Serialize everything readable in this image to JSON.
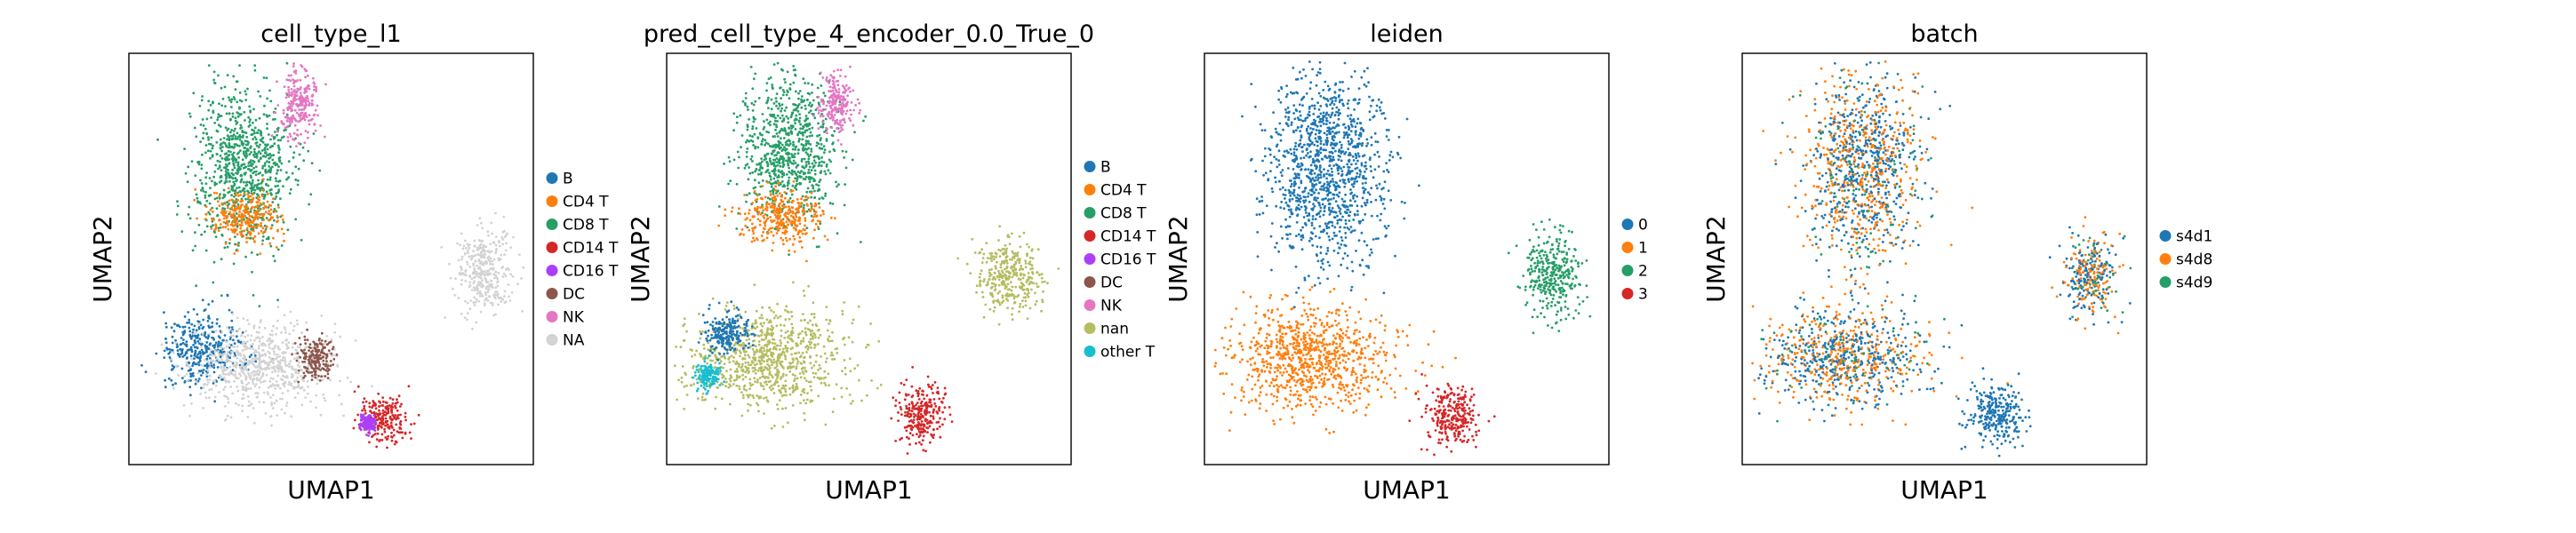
{
  "chart_data": [
    {
      "type": "scatter",
      "title": "cell_type_l1",
      "xlabel": "UMAP1",
      "ylabel": "UMAP2",
      "grid": false,
      "legend_position": "right",
      "legend": [
        {
          "label": "B",
          "color": "#1f77b4"
        },
        {
          "label": "CD4 T",
          "color": "#ff7f0e"
        },
        {
          "label": "CD8 T",
          "color": "#279e68"
        },
        {
          "label": "CD14 T",
          "color": "#d62728"
        },
        {
          "label": "CD16 T",
          "color": "#aa40fc"
        },
        {
          "label": "DC",
          "color": "#8c564b"
        },
        {
          "label": "NK",
          "color": "#e377c2"
        },
        {
          "label": "NA",
          "color": "#d3d3d3"
        }
      ],
      "regions": [
        {
          "label": "CD8 T",
          "x": 0.28,
          "y": 0.72,
          "rx": 0.12,
          "ry": 0.2
        },
        {
          "label": "CD4 T",
          "x": 0.29,
          "y": 0.6,
          "rx": 0.09,
          "ry": 0.06
        },
        {
          "label": "NK",
          "x": 0.42,
          "y": 0.88,
          "rx": 0.05,
          "ry": 0.08
        },
        {
          "label": "B",
          "x": 0.18,
          "y": 0.28,
          "rx": 0.1,
          "ry": 0.08
        },
        {
          "label": "NA",
          "x": 0.33,
          "y": 0.24,
          "rx": 0.18,
          "ry": 0.1
        },
        {
          "label": "NA",
          "x": 0.88,
          "y": 0.47,
          "rx": 0.07,
          "ry": 0.1
        },
        {
          "label": "DC",
          "x": 0.46,
          "y": 0.26,
          "rx": 0.04,
          "ry": 0.05
        },
        {
          "label": "CD14 T",
          "x": 0.63,
          "y": 0.11,
          "rx": 0.06,
          "ry": 0.06
        },
        {
          "label": "CD16 T",
          "x": 0.59,
          "y": 0.1,
          "rx": 0.02,
          "ry": 0.02
        }
      ]
    },
    {
      "type": "scatter",
      "title": "pred_cell_type_4_encoder_0.0_True_0",
      "xlabel": "UMAP1",
      "ylabel": "UMAP2",
      "grid": false,
      "legend_position": "right",
      "legend": [
        {
          "label": "B",
          "color": "#1f77b4"
        },
        {
          "label": "CD4 T",
          "color": "#ff7f0e"
        },
        {
          "label": "CD8 T",
          "color": "#279e68"
        },
        {
          "label": "CD14 T",
          "color": "#d62728"
        },
        {
          "label": "CD16 T",
          "color": "#aa40fc"
        },
        {
          "label": "DC",
          "color": "#8c564b"
        },
        {
          "label": "NK",
          "color": "#e377c2"
        },
        {
          "label": "nan",
          "color": "#b5bd61"
        },
        {
          "label": "other T",
          "color": "#17becf"
        }
      ],
      "regions": [
        {
          "label": "CD8 T",
          "x": 0.3,
          "y": 0.76,
          "rx": 0.12,
          "ry": 0.18
        },
        {
          "label": "CD4 T",
          "x": 0.28,
          "y": 0.6,
          "rx": 0.1,
          "ry": 0.07
        },
        {
          "label": "NK",
          "x": 0.42,
          "y": 0.88,
          "rx": 0.04,
          "ry": 0.07
        },
        {
          "label": "nan",
          "x": 0.25,
          "y": 0.26,
          "rx": 0.2,
          "ry": 0.12
        },
        {
          "label": "B",
          "x": 0.15,
          "y": 0.32,
          "rx": 0.06,
          "ry": 0.05
        },
        {
          "label": "nan",
          "x": 0.85,
          "y": 0.46,
          "rx": 0.08,
          "ry": 0.09
        },
        {
          "label": "CD14 T",
          "x": 0.63,
          "y": 0.12,
          "rx": 0.06,
          "ry": 0.07
        },
        {
          "label": "other T",
          "x": 0.1,
          "y": 0.22,
          "rx": 0.03,
          "ry": 0.03
        }
      ]
    },
    {
      "type": "scatter",
      "title": "leiden",
      "xlabel": "UMAP1",
      "ylabel": "UMAP2",
      "grid": false,
      "legend_position": "right",
      "legend": [
        {
          "label": "0",
          "color": "#1f77b4"
        },
        {
          "label": "1",
          "color": "#ff7f0e"
        },
        {
          "label": "2",
          "color": "#279e68"
        },
        {
          "label": "3",
          "color": "#d62728"
        }
      ],
      "regions": [
        {
          "label": "0",
          "x": 0.3,
          "y": 0.72,
          "rx": 0.14,
          "ry": 0.24
        },
        {
          "label": "1",
          "x": 0.26,
          "y": 0.26,
          "rx": 0.2,
          "ry": 0.12
        },
        {
          "label": "2",
          "x": 0.86,
          "y": 0.46,
          "rx": 0.07,
          "ry": 0.1
        },
        {
          "label": "3",
          "x": 0.61,
          "y": 0.12,
          "rx": 0.07,
          "ry": 0.07
        }
      ]
    },
    {
      "type": "scatter",
      "title": "batch",
      "xlabel": "UMAP1",
      "ylabel": "UMAP2",
      "grid": false,
      "legend_position": "right",
      "legend": [
        {
          "label": "s4d1",
          "color": "#1f77b4"
        },
        {
          "label": "s4d8",
          "color": "#ff7f0e"
        },
        {
          "label": "s4d9",
          "color": "#279e68"
        }
      ],
      "regions": [
        {
          "label": "mixed",
          "x": 0.3,
          "y": 0.72,
          "rx": 0.14,
          "ry": 0.24
        },
        {
          "label": "mixed",
          "x": 0.25,
          "y": 0.26,
          "rx": 0.2,
          "ry": 0.12
        },
        {
          "label": "mixed",
          "x": 0.86,
          "y": 0.46,
          "rx": 0.07,
          "ry": 0.1
        },
        {
          "label": "s4d1",
          "x": 0.63,
          "y": 0.12,
          "rx": 0.07,
          "ry": 0.07
        }
      ]
    }
  ]
}
